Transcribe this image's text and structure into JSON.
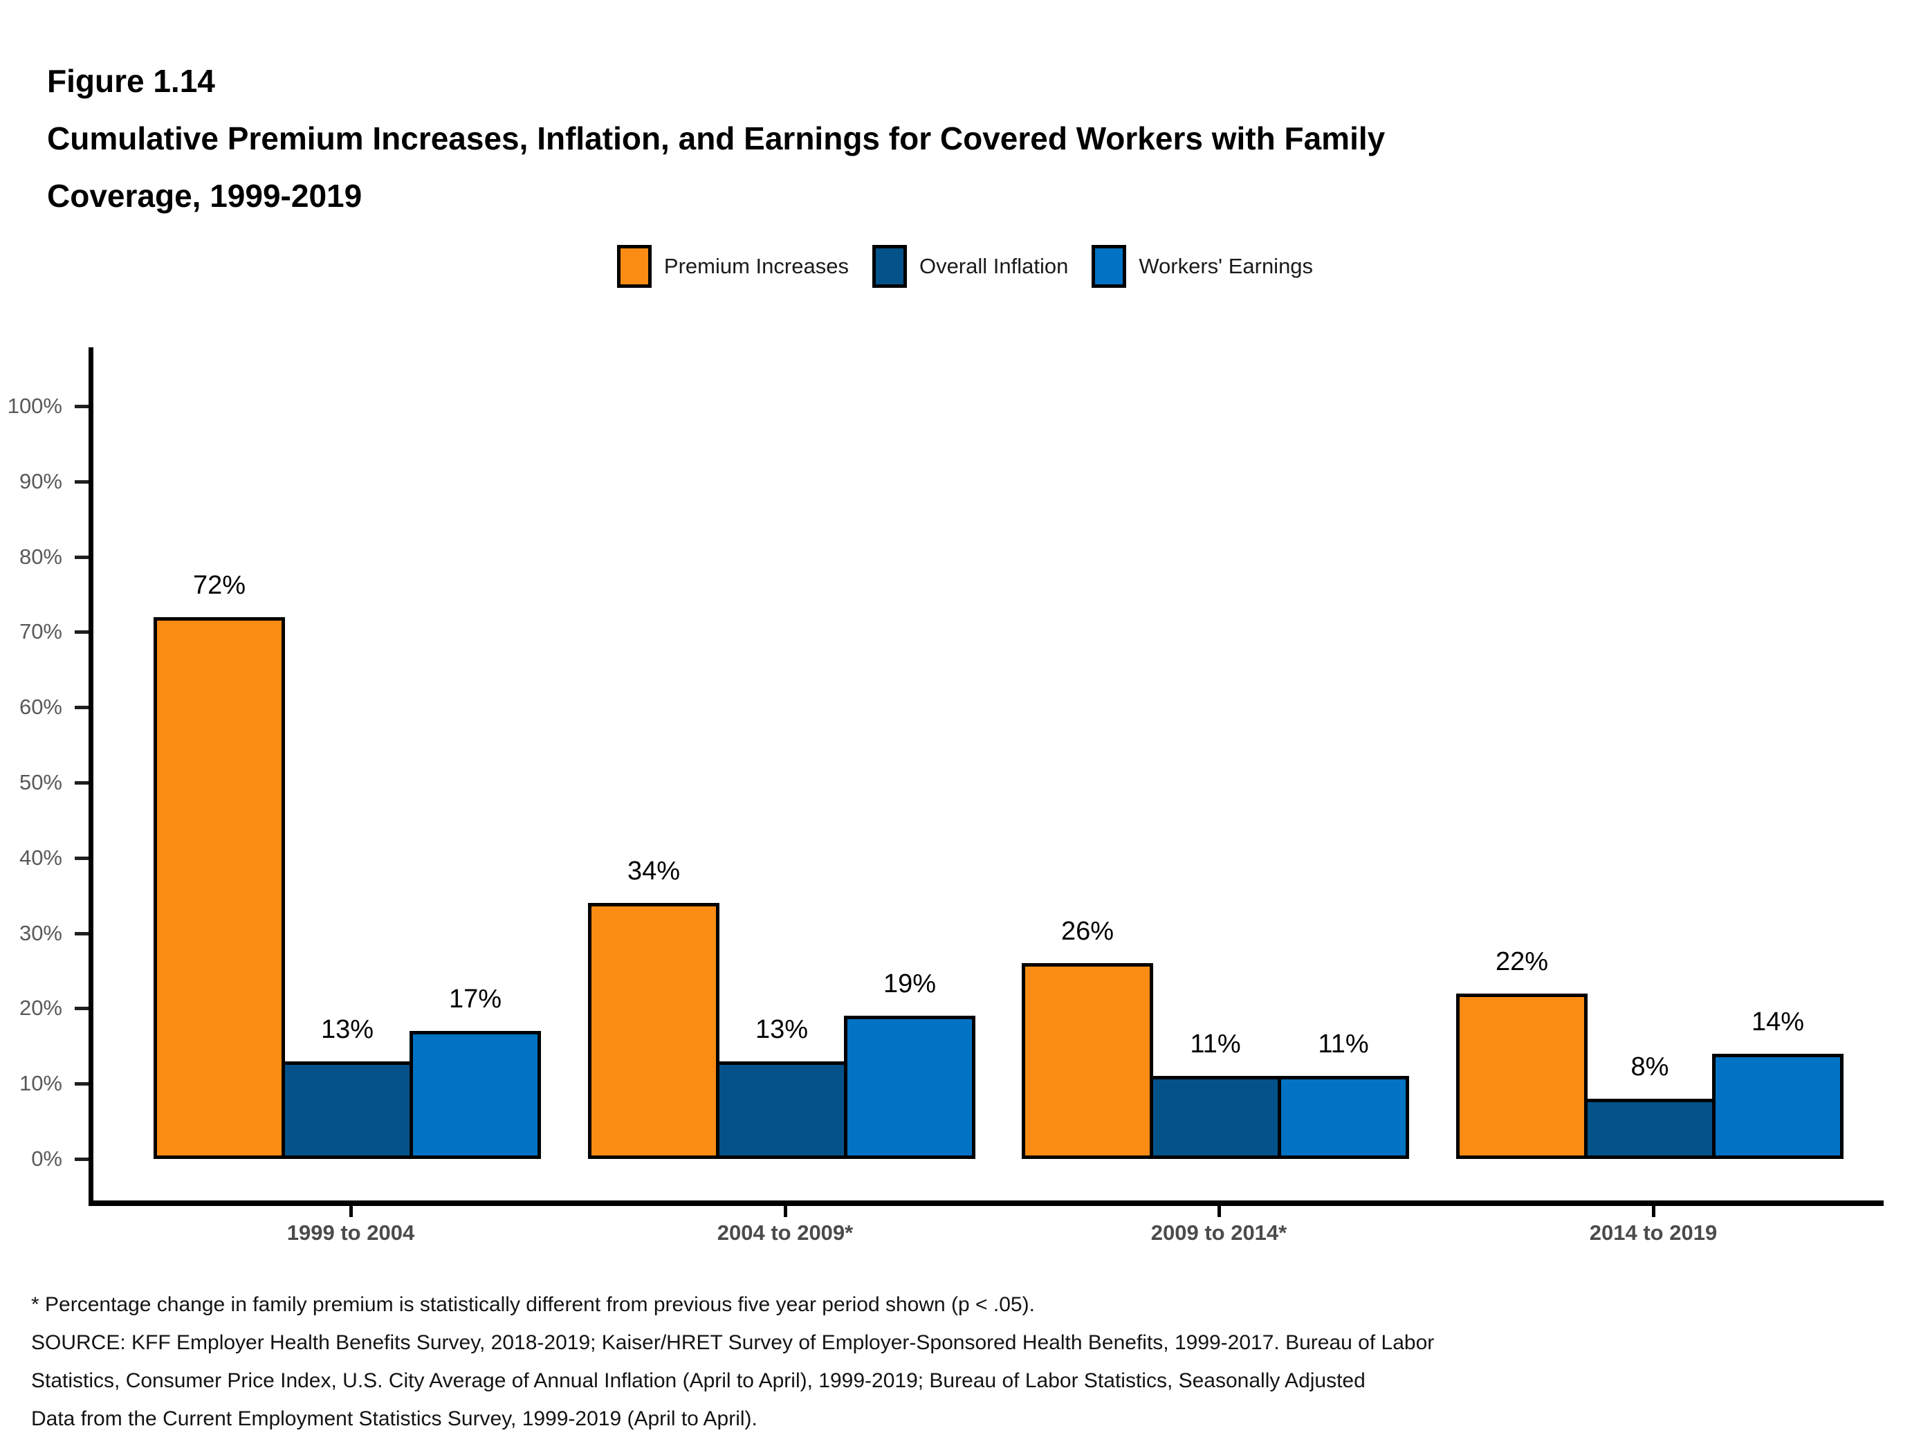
{
  "header": {
    "figure_label": "Figure 1.14",
    "title_line1": "Cumulative Premium Increases, Inflation, and Earnings for Covered Workers with Family",
    "title_line2": "Coverage, 1999-2019"
  },
  "chart_data": {
    "type": "bar",
    "title": "Cumulative Premium Increases, Inflation, and Earnings for Covered Workers with Family Coverage, 1999-2019",
    "categories": [
      "1999 to 2004",
      "2004 to 2009*",
      "2009 to 2014*",
      "2014 to 2019"
    ],
    "series": [
      {
        "name": "Premium Increases",
        "color": "#FA8C14",
        "values": [
          72,
          34,
          26,
          22
        ]
      },
      {
        "name": "Overall Inflation",
        "color": "#04528A",
        "values": [
          13,
          13,
          11,
          8
        ]
      },
      {
        "name": "Workers' Earnings",
        "color": "#0273C4",
        "values": [
          17,
          19,
          11,
          14
        ]
      }
    ],
    "value_suffix": "%",
    "data_labels": true,
    "xlabel": "",
    "ylabel": "",
    "ylim": [
      0,
      100
    ],
    "y_tick_values": [
      0,
      10,
      20,
      30,
      40,
      50,
      60,
      70,
      80,
      90,
      100
    ],
    "y_tick_labels": [
      "0%",
      "10%",
      "20%",
      "30%",
      "40%",
      "50%",
      "60%",
      "70%",
      "80%",
      "90%",
      "100%"
    ],
    "grid": false,
    "legend_position": "top",
    "bar_border_color": "#000000"
  },
  "footnotes": [
    "* Percentage change in family premium is statistically different from previous five year period shown (p < .05).",
    "SOURCE: KFF Employer Health Benefits Survey, 2018-2019; Kaiser/HRET Survey of Employer-Sponsored Health Benefits, 1999-2017. Bureau of Labor",
    "Statistics, Consumer Price Index, U.S. City Average of Annual Inflation (April to April), 1999-2019; Bureau of Labor Statistics, Seasonally Adjusted",
    "Data from the Current Employment Statistics Survey, 1999-2019 (April to April)."
  ]
}
